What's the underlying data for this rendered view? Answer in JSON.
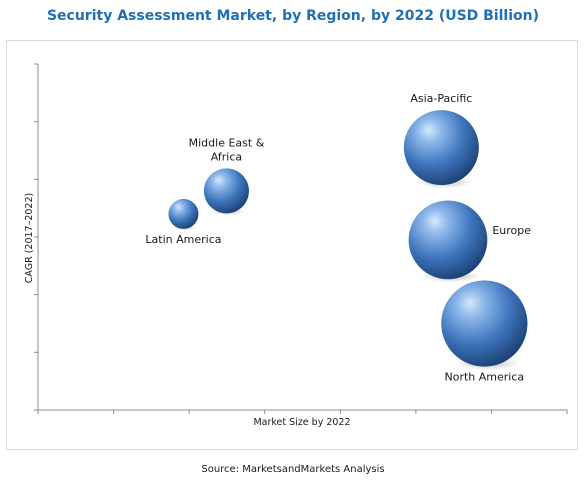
{
  "chart_data": {
    "type": "scatter",
    "title": "Security Assessment Market, by Region, by 2022 (USD Billion)",
    "xlabel": "Market Size by 2022",
    "ylabel": "CAGR (2017–2022)",
    "grid": false,
    "points": [
      {
        "label": "Latin America",
        "label_lines": [
          "Latin America"
        ],
        "x": 2.2,
        "y": 6.8,
        "size": 4.0,
        "label_pos": "below"
      },
      {
        "label": "Middle East & Africa",
        "label_lines": [
          "Middle East &",
          "Africa"
        ],
        "x": 2.85,
        "y": 7.6,
        "size": 6.0,
        "label_pos": "above"
      },
      {
        "label": "Asia-Pacific",
        "label_lines": [
          "Asia-Pacific"
        ],
        "x": 6.1,
        "y": 9.1,
        "size": 10.0,
        "label_pos": "above"
      },
      {
        "label": "Europe",
        "label_lines": [
          "Europe"
        ],
        "x": 6.2,
        "y": 5.9,
        "size": 10.5,
        "label_pos": "right"
      },
      {
        "label": "North America",
        "label_lines": [
          "North America"
        ],
        "x": 6.75,
        "y": 3.0,
        "size": 11.5,
        "label_pos": "below"
      }
    ],
    "xlim": [
      0,
      8
    ],
    "ylim": [
      0,
      12
    ]
  },
  "source": "Source: MarketsandMarkets Analysis",
  "colors": {
    "title": "#1f6fb5",
    "bubble_light": "#d6e8fb",
    "bubble_mid": "#5a8fd0",
    "bubble_dark": "#1b3f73",
    "axis": "#8c8c8c"
  }
}
